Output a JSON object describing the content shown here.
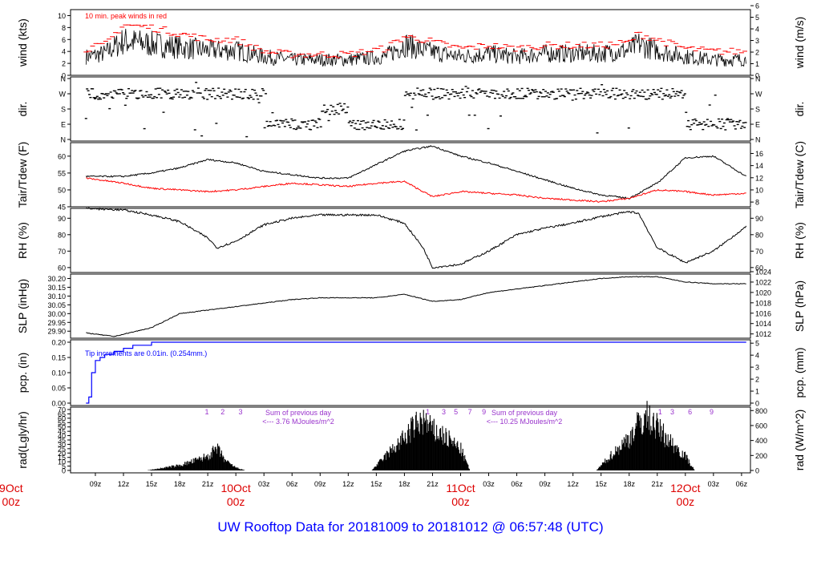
{
  "title": "UW Rooftop Data for 20181009  to  20181012 @ 06:57:48  (UTC)",
  "colors": {
    "title": "#0000ff",
    "day": "#dd0000",
    "peak": "#ff0000",
    "tdew": "#ff0000",
    "pcp": "#0000ff",
    "note": "#9933cc",
    "frame": "#000000"
  },
  "x_axis": {
    "ticks": [
      "09z",
      "12z",
      "15z",
      "18z",
      "21z",
      "10Oct",
      "03z",
      "06z",
      "09z",
      "12z",
      "15z",
      "18z",
      "21z",
      "11Oct",
      "03z",
      "06z",
      "09z",
      "12z",
      "15z",
      "18z",
      "21z",
      "12Oct",
      "03z",
      "06z"
    ],
    "day_labels": [
      {
        "date": "9Oct",
        "hour": "00z"
      },
      {
        "date": "10Oct",
        "hour": "00z"
      },
      {
        "date": "11Oct",
        "hour": "00z"
      },
      {
        "date": "12Oct",
        "hour": "00z"
      }
    ]
  },
  "panels": {
    "wind": {
      "ylabel_left": "wind (kts)",
      "ylabel_right": "wind (m/s)",
      "note": "10 min. peak winds in red",
      "left_ticks": [
        "0",
        "2",
        "4",
        "6",
        "8",
        "10"
      ],
      "right_ticks": [
        "0",
        "1",
        "2",
        "3",
        "4",
        "5",
        "6"
      ]
    },
    "dir": {
      "ylabel_left": "dir.",
      "ylabel_right": "dir.",
      "left_ticks": [
        "N",
        "E",
        "S",
        "W",
        "N"
      ],
      "right_ticks": [
        "N",
        "E",
        "S",
        "W",
        "N"
      ]
    },
    "temp": {
      "ylabel_left": "Tair/Tdew (F)",
      "ylabel_right": "Tair/Tdew (C)",
      "left_ticks": [
        "45",
        "50",
        "55",
        "60"
      ],
      "right_ticks": [
        "8",
        "10",
        "12",
        "14",
        "16"
      ]
    },
    "rh": {
      "ylabel_left": "RH (%)",
      "ylabel_right": "RH (%)",
      "left_ticks": [
        "60",
        "70",
        "80",
        "90"
      ],
      "right_ticks": [
        "60",
        "70",
        "80",
        "90"
      ]
    },
    "slp": {
      "ylabel_left": "SLP (inHg)",
      "ylabel_right": "SLP (hPa)",
      "left_ticks": [
        "29.90",
        "29.95",
        "30.00",
        "30.05",
        "30.10",
        "30.15",
        "30.20"
      ],
      "right_ticks": [
        "1012",
        "1014",
        "1016",
        "1018",
        "1020",
        "1022",
        "1024"
      ]
    },
    "pcp": {
      "ylabel_left": "pcp. (in)",
      "ylabel_right": "pcp. (mm)",
      "note": "Tip increments are 0.01in. (0.254mm.)",
      "left_ticks": [
        "0.00",
        "0.05",
        "0.10",
        "0.15",
        "0.20"
      ],
      "right_ticks": [
        "0",
        "1",
        "2",
        "3",
        "4",
        "5"
      ]
    },
    "rad": {
      "ylabel_left": "rad(Lgly/hr)",
      "ylabel_right": "rad (W/m^2)",
      "left_ticks": [
        "0",
        "5",
        "10",
        "15",
        "20",
        "25",
        "30",
        "35",
        "40",
        "45",
        "50",
        "55",
        "60",
        "65",
        "70"
      ],
      "right_ticks": [
        "0",
        "200",
        "400",
        "600",
        "800"
      ],
      "sums": [
        {
          "line1": "Sum of previous day",
          "line2": "<--- 3.76 MJoules/m^2"
        },
        {
          "line1": "Sum of previous day",
          "line2": "<--- 10.25 MJoules/m^2"
        }
      ],
      "hour_marks": [
        {
          "labels": [
            "1",
            "2",
            "3"
          ]
        },
        {
          "labels": [
            "1",
            "3",
            "5",
            "7",
            "9"
          ]
        },
        {
          "labels": [
            "1",
            "3",
            "6",
            "9"
          ]
        }
      ]
    }
  },
  "chart_data": [
    {
      "type": "line",
      "name": "wind",
      "ylabel": "wind (kts)",
      "ylim": [
        0,
        11
      ],
      "x_hours": [
        8,
        10,
        12,
        15,
        18,
        21,
        24,
        27,
        30,
        33,
        36,
        40,
        42,
        44,
        48,
        51,
        54,
        57,
        60,
        63,
        66,
        67,
        69,
        72,
        75,
        78.5
      ],
      "series": [
        {
          "name": "wind",
          "values": [
            3,
            3.5,
            5.5,
            5,
            4.5,
            4,
            4,
            3,
            2.5,
            2.5,
            2.5,
            3,
            5,
            4,
            3,
            3.5,
            3,
            3.5,
            3.5,
            3.5,
            4,
            5,
            4,
            3,
            2.5,
            2.5
          ]
        },
        {
          "name": "10 min. peak winds",
          "values": [
            4.5,
            5,
            8.5,
            8,
            7,
            6,
            6,
            4,
            3.5,
            3.5,
            3.5,
            4.5,
            6.5,
            6,
            4.5,
            5,
            4.5,
            5,
            5,
            5,
            5.5,
            7,
            6,
            4.5,
            4,
            4
          ]
        }
      ]
    },
    {
      "type": "scatter",
      "name": "dir",
      "ylabel": "dir.",
      "y_categories": [
        "N",
        "E",
        "S",
        "W",
        "N"
      ],
      "x_hours": [
        8,
        15,
        22,
        24,
        27,
        30,
        33,
        36,
        39,
        42,
        45,
        48,
        51,
        54,
        57,
        60,
        63,
        66,
        68,
        70,
        72,
        75,
        78.5
      ],
      "values": [
        "W",
        "W",
        "W",
        "W",
        "E",
        "E",
        "S",
        "E",
        "E",
        "W",
        "W",
        "W",
        "W",
        "W",
        "W",
        "W",
        "W",
        "W",
        "W",
        "W",
        "E",
        "E",
        "E"
      ]
    },
    {
      "type": "line",
      "name": "temp",
      "ylabel": "Tair/Tdew (F)",
      "ylim": [
        45,
        64
      ],
      "x_hours": [
        8,
        12,
        15,
        18,
        21,
        24,
        27,
        30,
        33,
        36,
        39,
        42,
        45,
        48,
        51,
        54,
        57,
        60,
        63,
        66,
        69,
        72,
        75,
        78.5
      ],
      "series": [
        {
          "name": "Tair",
          "values": [
            54,
            54,
            55,
            56.5,
            59,
            58,
            55.5,
            54.5,
            53.5,
            53.5,
            57.5,
            61.5,
            63,
            60,
            58,
            55.5,
            53,
            50.5,
            48.5,
            47.5,
            52,
            59.5,
            60,
            54
          ]
        },
        {
          "name": "Tdew",
          "values": [
            53.5,
            52,
            50.5,
            50,
            49.5,
            50,
            51,
            52,
            51.5,
            51,
            52,
            52.5,
            48,
            49.5,
            49,
            48.5,
            47.5,
            47,
            46.5,
            47.5,
            50,
            49.5,
            48.5,
            49
          ]
        }
      ]
    },
    {
      "type": "line",
      "name": "rh",
      "ylabel": "RH (%)",
      "ylim": [
        57,
        96
      ],
      "x_hours": [
        8,
        12,
        15,
        18,
        21,
        22,
        24,
        27,
        30,
        33,
        36,
        39,
        42,
        44,
        45,
        48,
        51,
        54,
        57,
        60,
        63,
        66,
        67,
        69,
        72,
        75,
        78.5
      ],
      "values": [
        96,
        95,
        92,
        88,
        78,
        72,
        76,
        86,
        90,
        92,
        92,
        92,
        87,
        72,
        60,
        62,
        70,
        80,
        84,
        87,
        91,
        94,
        93,
        72,
        63,
        70,
        85
      ]
    },
    {
      "type": "line",
      "name": "slp",
      "ylabel": "SLP (inHg)",
      "ylim": [
        29.86,
        30.225
      ],
      "x_hours": [
        8,
        11,
        15,
        18,
        21,
        24,
        27,
        30,
        33,
        36,
        39,
        42,
        45,
        48,
        51,
        54,
        57,
        60,
        63,
        66,
        69,
        72,
        75,
        78.5
      ],
      "values": [
        29.89,
        29.87,
        29.92,
        30.0,
        30.02,
        30.04,
        30.06,
        30.08,
        30.09,
        30.09,
        30.09,
        30.11,
        30.07,
        30.08,
        30.12,
        30.14,
        30.16,
        30.18,
        30.2,
        30.21,
        30.21,
        30.18,
        30.17,
        30.17
      ]
    },
    {
      "type": "line",
      "name": "pcp",
      "ylabel": "pcp. (in)",
      "ylim": [
        0,
        0.2
      ],
      "x_hours": [
        8,
        8.3,
        8.6,
        9,
        9.5,
        10,
        11,
        12,
        13,
        14,
        15,
        78.5
      ],
      "values": [
        0,
        0.02,
        0.1,
        0.14,
        0.15,
        0.16,
        0.17,
        0.18,
        0.19,
        0.19,
        0.2,
        0.2
      ]
    },
    {
      "type": "area",
      "name": "rad",
      "ylabel": "rad(Lgly/hr)",
      "ylim": [
        0,
        70
      ],
      "x_hours": [
        14.5,
        16,
        18,
        20,
        21,
        22,
        23,
        24,
        25,
        38.5,
        40,
        42,
        43,
        44,
        45,
        46,
        48,
        49,
        62.5,
        64,
        66,
        67,
        68,
        69,
        70,
        72,
        73
      ],
      "values": [
        0,
        3,
        7,
        15,
        20,
        30,
        12,
        4,
        0,
        0,
        20,
        45,
        60,
        70,
        55,
        50,
        30,
        0,
        0,
        20,
        45,
        65,
        75,
        60,
        45,
        20,
        0
      ]
    }
  ]
}
